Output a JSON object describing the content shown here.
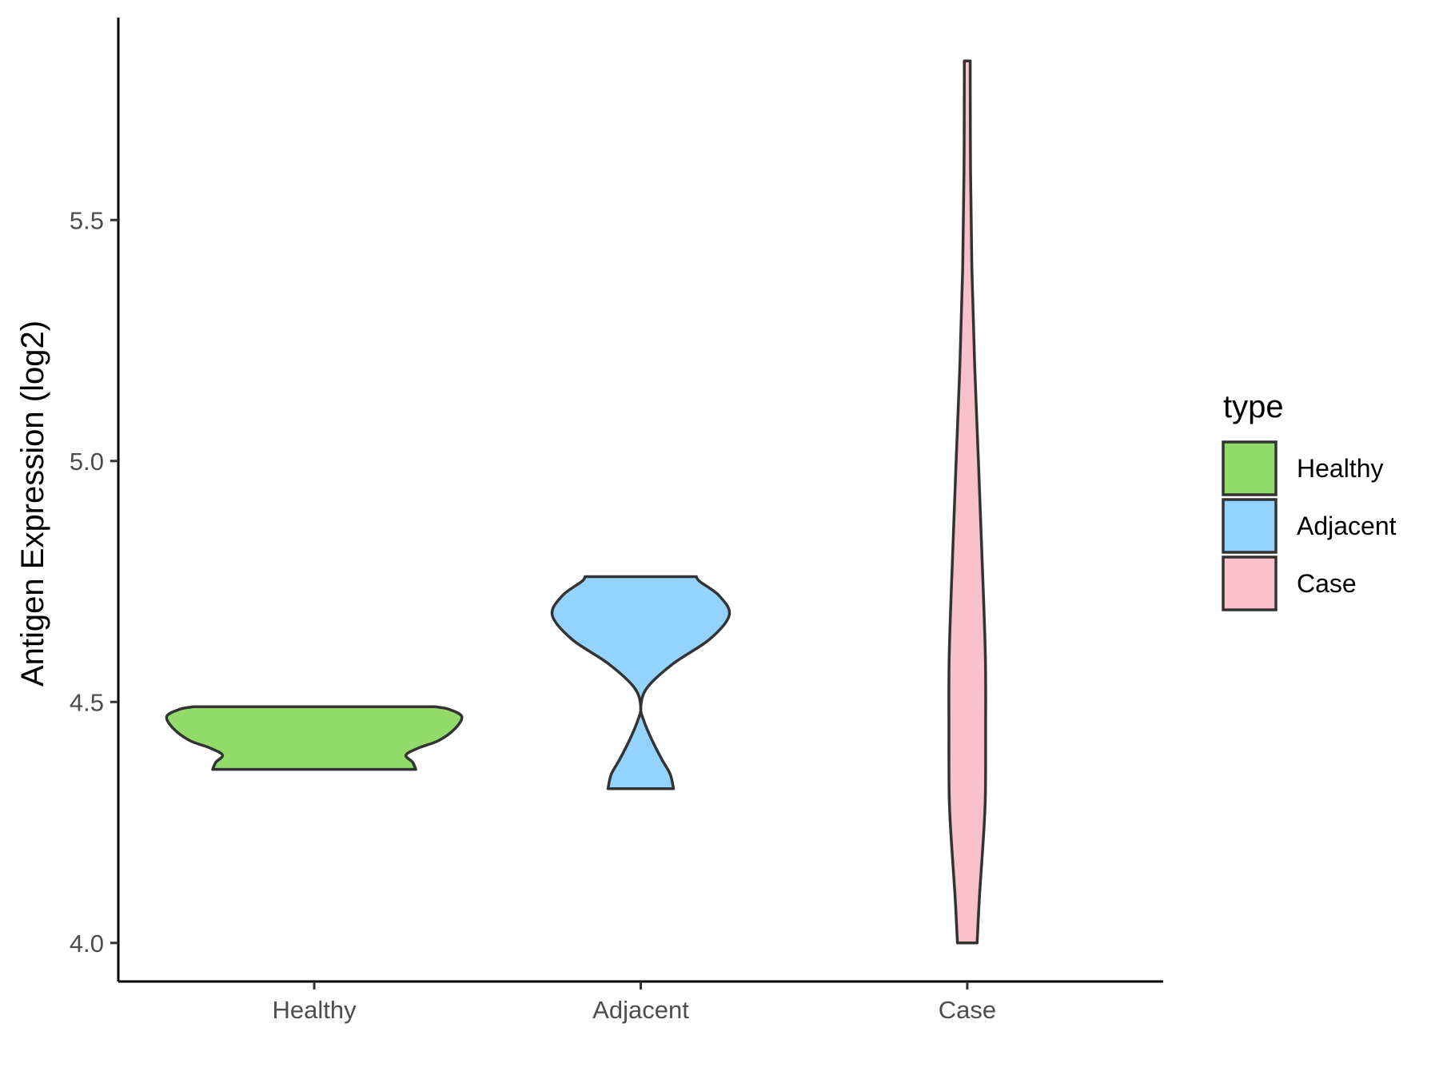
{
  "chart_data": {
    "type": "violin",
    "title": "",
    "xlabel": "",
    "ylabel": "Antigen Expression (log2)",
    "ylim": [
      3.92,
      5.92
    ],
    "yticks": [
      4.0,
      4.5,
      5.0,
      5.5
    ],
    "ytick_labels": [
      "4.0",
      "4.5",
      "5.0",
      "5.5"
    ],
    "categories": [
      "Healthy",
      "Adjacent",
      "Case"
    ],
    "grid": false,
    "legend": {
      "title": "type",
      "position": "right",
      "entries": [
        "Healthy",
        "Adjacent",
        "Case"
      ]
    },
    "series": [
      {
        "category": "Healthy",
        "color": "#92da6a",
        "min": 4.36,
        "max": 4.49,
        "density": [
          [
            4.36,
            0.62
          ],
          [
            4.375,
            0.6
          ],
          [
            4.39,
            0.56
          ],
          [
            4.405,
            0.64
          ],
          [
            4.42,
            0.76
          ],
          [
            4.445,
            0.86
          ],
          [
            4.47,
            0.9
          ],
          [
            4.485,
            0.82
          ],
          [
            4.49,
            0.74
          ]
        ]
      },
      {
        "category": "Adjacent",
        "color": "#93d3fd",
        "min": 4.32,
        "max": 4.76,
        "density": [
          [
            4.32,
            0.2
          ],
          [
            4.35,
            0.18
          ],
          [
            4.38,
            0.13
          ],
          [
            4.42,
            0.07
          ],
          [
            4.46,
            0.02
          ],
          [
            4.49,
            0.0
          ],
          [
            4.53,
            0.04
          ],
          [
            4.58,
            0.2
          ],
          [
            4.63,
            0.42
          ],
          [
            4.68,
            0.54
          ],
          [
            4.72,
            0.48
          ],
          [
            4.75,
            0.36
          ],
          [
            4.76,
            0.34
          ]
        ]
      },
      {
        "category": "Case",
        "color": "#f8c1cb",
        "min": 4.0,
        "max": 5.83,
        "density": [
          [
            4.0,
            0.06
          ],
          [
            4.1,
            0.075
          ],
          [
            4.2,
            0.095
          ],
          [
            4.3,
            0.11
          ],
          [
            4.45,
            0.112
          ],
          [
            4.6,
            0.11
          ],
          [
            4.8,
            0.09
          ],
          [
            5.0,
            0.068
          ],
          [
            5.2,
            0.045
          ],
          [
            5.4,
            0.028
          ],
          [
            5.6,
            0.02
          ],
          [
            5.8,
            0.018
          ],
          [
            5.83,
            0.018
          ]
        ]
      }
    ]
  }
}
